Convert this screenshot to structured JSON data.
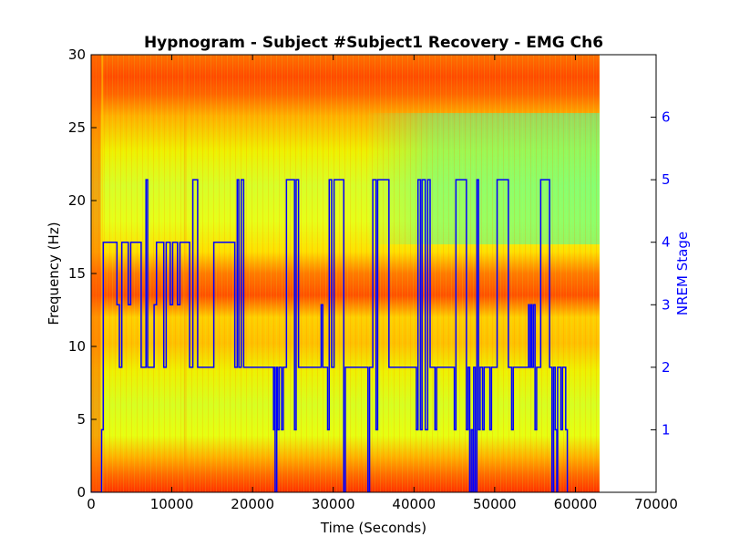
{
  "chart_data": {
    "type": "heatmap",
    "title": "Hypnogram - Subject #Subject1 Recovery - EMG Ch6",
    "xlabel": "Time (Seconds)",
    "ylabel": "Frequency (Hz)",
    "y2label": "NREM Stage",
    "xlim": [
      0,
      70000
    ],
    "ylim": [
      0,
      30
    ],
    "y2lim": [
      0,
      7
    ],
    "xticks": [
      0,
      10000,
      20000,
      30000,
      40000,
      50000,
      60000,
      70000
    ],
    "xtick_labels": [
      "0",
      "10000",
      "20000",
      "30000",
      "40000",
      "50000",
      "60000",
      "70000"
    ],
    "yticks": [
      0,
      5,
      10,
      15,
      20,
      25,
      30
    ],
    "ytick_labels": [
      "0",
      "5",
      "10",
      "15",
      "20",
      "25",
      "30"
    ],
    "y2ticks": [
      1,
      2,
      3,
      4,
      5,
      6
    ],
    "y2tick_labels": [
      "1",
      "2",
      "3",
      "4",
      "5",
      "6"
    ],
    "spectrogram": {
      "time_range": [
        0,
        63000
      ],
      "freq_range": [
        0,
        30
      ],
      "colormap": "jet",
      "high_power_bands_hz": [
        [
          0,
          3
        ],
        [
          13,
          16
        ],
        [
          27,
          30
        ]
      ]
    },
    "hypnogram": {
      "color": "#0000ff",
      "points": [
        [
          0,
          0
        ],
        [
          1300,
          0
        ],
        [
          1300,
          1
        ],
        [
          1500,
          1
        ],
        [
          1500,
          4
        ],
        [
          3200,
          4
        ],
        [
          3200,
          3
        ],
        [
          3500,
          3
        ],
        [
          3500,
          2
        ],
        [
          3800,
          2
        ],
        [
          3800,
          4
        ],
        [
          4600,
          4
        ],
        [
          4600,
          3
        ],
        [
          4900,
          3
        ],
        [
          4900,
          4
        ],
        [
          6200,
          4
        ],
        [
          6200,
          2
        ],
        [
          6800,
          2
        ],
        [
          6800,
          5
        ],
        [
          7000,
          5
        ],
        [
          7000,
          2
        ],
        [
          7800,
          2
        ],
        [
          7800,
          3
        ],
        [
          8100,
          3
        ],
        [
          8100,
          4
        ],
        [
          9000,
          4
        ],
        [
          9000,
          2
        ],
        [
          9300,
          2
        ],
        [
          9300,
          4
        ],
        [
          9800,
          4
        ],
        [
          9800,
          3
        ],
        [
          10100,
          3
        ],
        [
          10100,
          4
        ],
        [
          10700,
          4
        ],
        [
          10700,
          3
        ],
        [
          11000,
          3
        ],
        [
          11000,
          4
        ],
        [
          12200,
          4
        ],
        [
          12200,
          2
        ],
        [
          12600,
          2
        ],
        [
          12600,
          5
        ],
        [
          13200,
          5
        ],
        [
          13200,
          2
        ],
        [
          15200,
          2
        ],
        [
          15200,
          4
        ],
        [
          17800,
          4
        ],
        [
          17800,
          2
        ],
        [
          18100,
          2
        ],
        [
          18100,
          5
        ],
        [
          18300,
          5
        ],
        [
          18300,
          2
        ],
        [
          18600,
          2
        ],
        [
          18600,
          5
        ],
        [
          18900,
          5
        ],
        [
          18900,
          2
        ],
        [
          22600,
          2
        ],
        [
          22600,
          1
        ],
        [
          22700,
          1
        ],
        [
          22700,
          2
        ],
        [
          22800,
          2
        ],
        [
          22800,
          0
        ],
        [
          23000,
          0
        ],
        [
          23000,
          2
        ],
        [
          23100,
          2
        ],
        [
          23100,
          1
        ],
        [
          23300,
          1
        ],
        [
          23300,
          2
        ],
        [
          23600,
          2
        ],
        [
          23600,
          1
        ],
        [
          23800,
          1
        ],
        [
          23800,
          2
        ],
        [
          24200,
          2
        ],
        [
          24200,
          5
        ],
        [
          25200,
          5
        ],
        [
          25200,
          1
        ],
        [
          25400,
          1
        ],
        [
          25400,
          5
        ],
        [
          25700,
          5
        ],
        [
          25700,
          2
        ],
        [
          28500,
          2
        ],
        [
          28500,
          3
        ],
        [
          28700,
          3
        ],
        [
          28700,
          2
        ],
        [
          29300,
          2
        ],
        [
          29300,
          1
        ],
        [
          29500,
          1
        ],
        [
          29500,
          5
        ],
        [
          29800,
          5
        ],
        [
          29800,
          2
        ],
        [
          30100,
          2
        ],
        [
          30100,
          5
        ],
        [
          31300,
          5
        ],
        [
          31300,
          0
        ],
        [
          31500,
          0
        ],
        [
          31500,
          2
        ],
        [
          34300,
          2
        ],
        [
          34300,
          0
        ],
        [
          34500,
          0
        ],
        [
          34500,
          2
        ],
        [
          34900,
          2
        ],
        [
          34900,
          5
        ],
        [
          35300,
          5
        ],
        [
          35300,
          1
        ],
        [
          35500,
          1
        ],
        [
          35500,
          5
        ],
        [
          36900,
          5
        ],
        [
          36900,
          2
        ],
        [
          40300,
          2
        ],
        [
          40300,
          1
        ],
        [
          40500,
          1
        ],
        [
          40500,
          5
        ],
        [
          40800,
          5
        ],
        [
          40800,
          1
        ],
        [
          41000,
          1
        ],
        [
          41000,
          5
        ],
        [
          41400,
          5
        ],
        [
          41400,
          1
        ],
        [
          41700,
          1
        ],
        [
          41700,
          5
        ],
        [
          42000,
          5
        ],
        [
          42000,
          2
        ],
        [
          42600,
          2
        ],
        [
          42600,
          1
        ],
        [
          42800,
          1
        ],
        [
          42800,
          2
        ],
        [
          45000,
          2
        ],
        [
          45000,
          1
        ],
        [
          45200,
          1
        ],
        [
          45200,
          5
        ],
        [
          46500,
          5
        ],
        [
          46500,
          1
        ],
        [
          46700,
          1
        ],
        [
          46700,
          2
        ],
        [
          46900,
          2
        ],
        [
          46900,
          0
        ],
        [
          47100,
          0
        ],
        [
          47100,
          1
        ],
        [
          47300,
          1
        ],
        [
          47300,
          0
        ],
        [
          47400,
          0
        ],
        [
          47400,
          2
        ],
        [
          47600,
          2
        ],
        [
          47600,
          0
        ],
        [
          47800,
          0
        ],
        [
          47800,
          5
        ],
        [
          48000,
          5
        ],
        [
          48000,
          1
        ],
        [
          48200,
          1
        ],
        [
          48200,
          2
        ],
        [
          48500,
          2
        ],
        [
          48500,
          1
        ],
        [
          48700,
          1
        ],
        [
          48700,
          2
        ],
        [
          49400,
          2
        ],
        [
          49400,
          1
        ],
        [
          49600,
          1
        ],
        [
          49600,
          2
        ],
        [
          50300,
          2
        ],
        [
          50300,
          5
        ],
        [
          51700,
          5
        ],
        [
          51700,
          2
        ],
        [
          52100,
          2
        ],
        [
          52100,
          1
        ],
        [
          52300,
          1
        ],
        [
          52300,
          2
        ],
        [
          54200,
          2
        ],
        [
          54200,
          3
        ],
        [
          54300,
          3
        ],
        [
          54300,
          2
        ],
        [
          54500,
          2
        ],
        [
          54500,
          3
        ],
        [
          54600,
          3
        ],
        [
          54600,
          2
        ],
        [
          54800,
          2
        ],
        [
          54800,
          3
        ],
        [
          55000,
          3
        ],
        [
          55000,
          1
        ],
        [
          55200,
          1
        ],
        [
          55200,
          2
        ],
        [
          55700,
          2
        ],
        [
          55700,
          5
        ],
        [
          56800,
          5
        ],
        [
          56800,
          2
        ],
        [
          57100,
          2
        ],
        [
          57100,
          0
        ],
        [
          57300,
          0
        ],
        [
          57300,
          2
        ],
        [
          57500,
          2
        ],
        [
          57500,
          1
        ],
        [
          57700,
          1
        ],
        [
          57700,
          0
        ],
        [
          57800,
          0
        ],
        [
          57800,
          2
        ],
        [
          58200,
          2
        ],
        [
          58200,
          1
        ],
        [
          58400,
          1
        ],
        [
          58400,
          2
        ],
        [
          58800,
          2
        ],
        [
          58800,
          1
        ],
        [
          59000,
          1
        ],
        [
          59000,
          0
        ],
        [
          59100,
          0
        ]
      ]
    }
  }
}
